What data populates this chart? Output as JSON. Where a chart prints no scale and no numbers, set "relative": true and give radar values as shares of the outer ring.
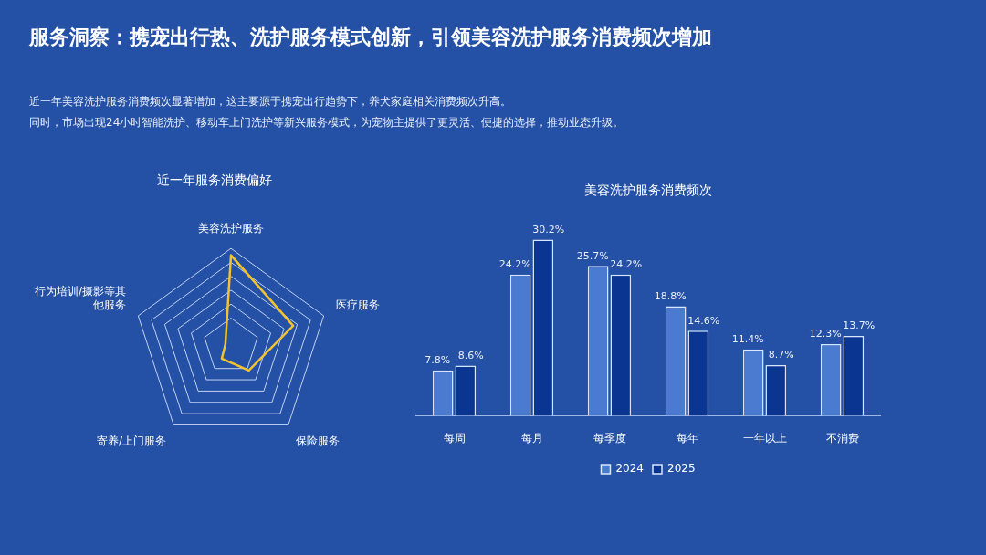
{
  "chart_data": [
    {
      "type": "other",
      "title": "服务洞察：携宠出行热、洗护服务模式创新，引领美容洗护服务消费频次增加",
      "annotations": [
        "近一年美容洗护服务消费频次显著增加，这主要源于携宠出行趋势下，养犬家庭相关消费频次升高。",
        "同时，市场出现24小时智能洗护、移动车上门洗护等新兴服务模式，为宠物主提供了更灵活、便捷的选择，推动业态升级。"
      ]
    },
    {
      "type": "radar",
      "title": "近一年服务消费偏好",
      "relative": true,
      "categories": [
        "美容洗护服务",
        "医疗服务",
        "保险服务",
        "寄养/上门服务",
        "行为培训/摄影等其他服务"
      ],
      "series": [
        {
          "color": "#f2c230",
          "values": [
            0.93,
            0.67,
            0.31,
            0.16,
            0.06
          ]
        }
      ],
      "marker": "none",
      "legend": false
    },
    {
      "type": "bar",
      "title": "美容洗护服务消费频次",
      "categories": [
        "每周",
        "每月",
        "每季度",
        "每年",
        "一年以上",
        "不消费"
      ],
      "relative": false,
      "legend": "bottom",
      "series": [
        {
          "name": "2024",
          "color": "#4a7bd0",
          "values": [
            7.8,
            24.2,
            25.7,
            18.8,
            11.4,
            12.3
          ],
          "value_labels": [
            "7.8%",
            "24.2%",
            "25.7%",
            "18.8%",
            "11.4%",
            "12.3%"
          ]
        },
        {
          "name": "2025",
          "color": "#0a3590",
          "values": [
            8.6,
            30.2,
            24.2,
            14.6,
            8.7,
            13.7
          ],
          "value_labels": [
            "8.6%",
            "30.2%",
            "24.2%",
            "14.6%",
            "8.7%",
            "13.7%"
          ]
        }
      ]
    }
  ]
}
